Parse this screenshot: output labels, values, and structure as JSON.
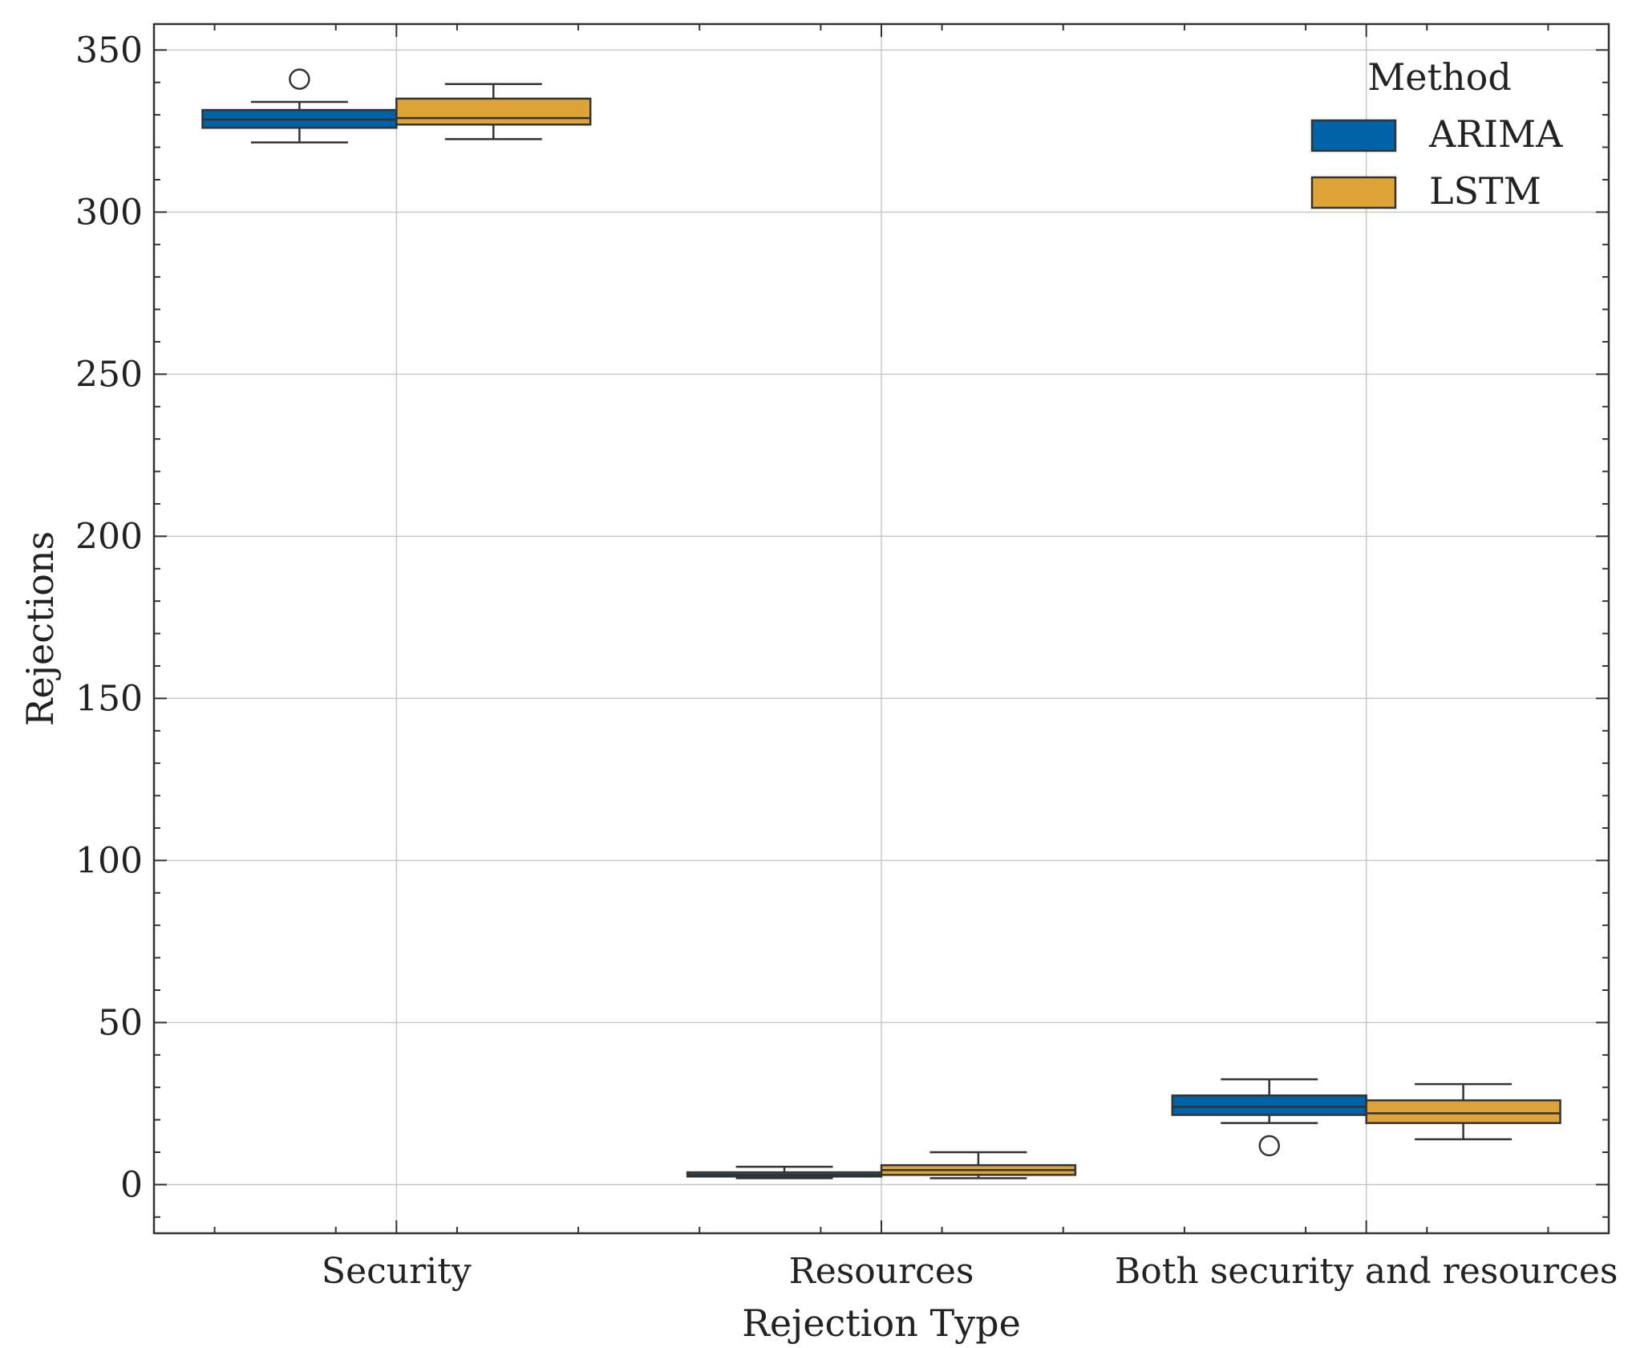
{
  "chart_data": {
    "type": "box",
    "title": "",
    "xlabel": "Rejection Type",
    "ylabel": "Rejections",
    "ylim": [
      -15,
      358
    ],
    "yticks": [
      0,
      50,
      100,
      150,
      200,
      250,
      300,
      350
    ],
    "grid": true,
    "categories": [
      "Security",
      "Resources",
      "Both security and resources"
    ],
    "legend": {
      "title": "Method",
      "position": "top-right"
    },
    "series": [
      {
        "name": "ARIMA",
        "color": "#0162a8",
        "boxes": [
          {
            "whisker_low": 321.5,
            "q1": 326,
            "median": 328.5,
            "q3": 331.5,
            "whisker_high": 334,
            "outliers": [
              341
            ]
          },
          {
            "whisker_low": 2,
            "q1": 2.5,
            "median": 3,
            "q3": 3.8,
            "whisker_high": 5.5,
            "outliers": []
          },
          {
            "whisker_low": 19,
            "q1": 21.5,
            "median": 24,
            "q3": 27.5,
            "whisker_high": 32.5,
            "outliers": [
              12
            ]
          }
        ]
      },
      {
        "name": "LSTM",
        "color": "#dea43a",
        "boxes": [
          {
            "whisker_low": 322.5,
            "q1": 327,
            "median": 329,
            "q3": 335,
            "whisker_high": 339.5,
            "outliers": []
          },
          {
            "whisker_low": 2,
            "q1": 3,
            "median": 4.5,
            "q3": 6,
            "whisker_high": 10,
            "outliers": []
          },
          {
            "whisker_low": 14,
            "q1": 19,
            "median": 22,
            "q3": 26,
            "whisker_high": 31,
            "outliers": []
          }
        ]
      }
    ]
  }
}
